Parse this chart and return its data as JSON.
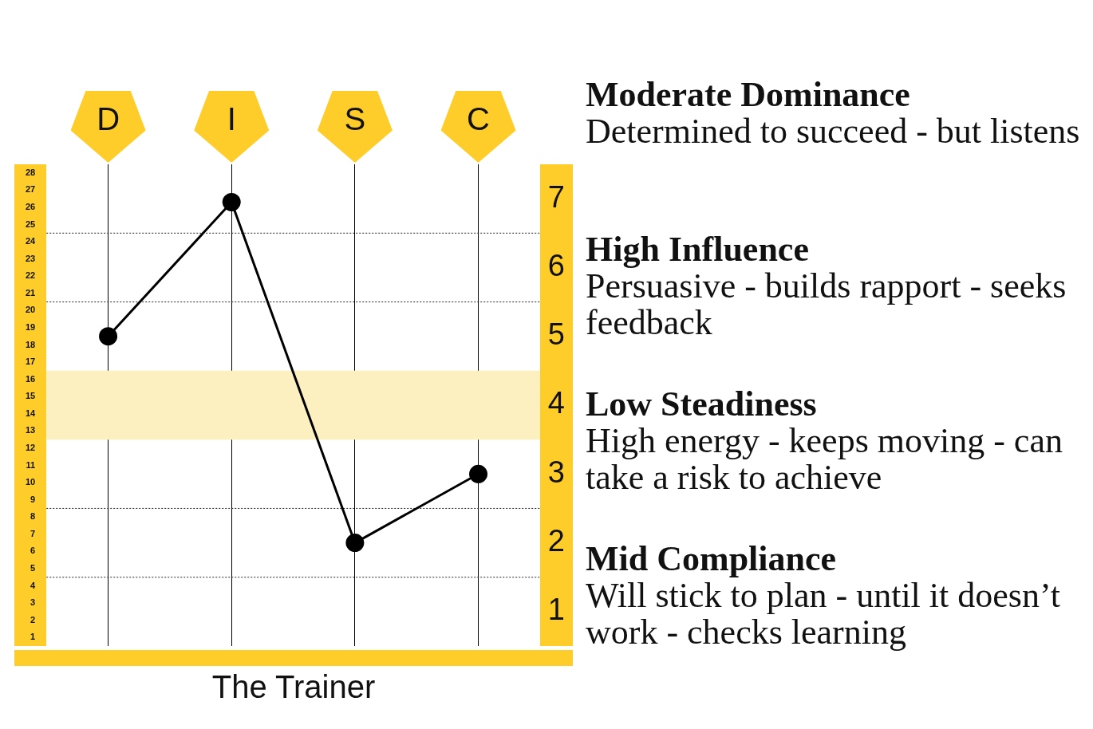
{
  "chart_data": {
    "type": "line",
    "title": "The Trainer",
    "categories": [
      "D",
      "I",
      "S",
      "C"
    ],
    "values": [
      18.5,
      26.3,
      6.5,
      10.5
    ],
    "color": "#000000",
    "marker": "circle",
    "grid": "x",
    "ylim": [
      0.5,
      28.5
    ],
    "yticks": [
      1,
      2,
      3,
      4,
      5,
      6,
      7,
      8,
      9,
      10,
      11,
      12,
      13,
      14,
      15,
      16,
      17,
      18,
      19,
      20,
      21,
      22,
      23,
      24,
      25,
      26,
      27,
      28
    ],
    "y2lim": [
      0.5,
      7.5
    ],
    "y2ticks": [
      1,
      2,
      3,
      4,
      5,
      6,
      7
    ],
    "ref_lines": [
      {
        "axis": "y2",
        "value": 6.5,
        "line_style": "dotted"
      },
      {
        "axis": "y2",
        "value": 5.5,
        "line_style": "dotted"
      },
      {
        "axis": "y2",
        "value": 2.5,
        "line_style": "dotted"
      },
      {
        "axis": "y2",
        "value": 1.5,
        "line_style": "dotted"
      }
    ],
    "bands": [
      {
        "axis": "y2",
        "from": 3.5,
        "to": 4.5,
        "color": "#fdf0c0"
      }
    ],
    "annotations": [
      "Moderate Dominance",
      "Determined to succeed - but listens",
      "High Influence",
      "Persuasive - builds rapport - seeks feedback",
      "Low Steadiness",
      "High energy - keeps moving - can take a risk to achieve",
      "Mid Compliance",
      "Will stick to plan - until it doesn’t work - checks learning"
    ]
  }
}
